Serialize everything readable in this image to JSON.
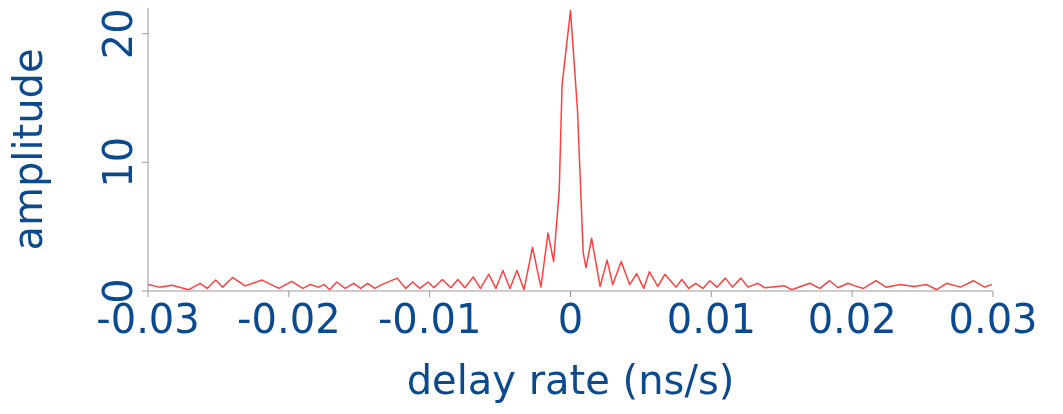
{
  "chart_data": {
    "type": "line",
    "xlabel": "delay rate (ns/s)",
    "ylabel": "amplitude",
    "xlim": [
      -0.03,
      0.03
    ],
    "xticks": [
      -0.03,
      -0.02,
      -0.01,
      0,
      0.01,
      0.02,
      0.03
    ],
    "ylim": [
      0,
      22
    ],
    "yticks": [
      0,
      10,
      20
    ],
    "grid": false,
    "marker": "none",
    "line_style": "solid",
    "series": [
      {
        "color": "#ff4040",
        "x": [
          -0.03,
          -0.0292,
          -0.0283,
          -0.0271,
          -0.0263,
          -0.0258,
          -0.0252,
          -0.0247,
          -0.024,
          -0.0231,
          -0.0219,
          -0.0207,
          -0.0198,
          -0.019,
          -0.0185,
          -0.0179,
          -0.0175,
          -0.0171,
          -0.0166,
          -0.016,
          -0.0154,
          -0.0149,
          -0.0144,
          -0.0139,
          -0.0134,
          -0.0123,
          -0.0117,
          -0.0112,
          -0.0107,
          -0.0101,
          -0.0097,
          -0.0091,
          -0.0085,
          -0.008,
          -0.0075,
          -0.0069,
          -0.0064,
          -0.0058,
          -0.0053,
          -0.0048,
          -0.0043,
          -0.0038,
          -0.0033,
          -0.0027,
          -0.0021,
          -0.0016,
          -0.0012,
          -0.0008,
          -0.0006,
          0,
          0.0005,
          0.0009,
          0.0011,
          0.0015,
          0.0021,
          0.0026,
          0.003,
          0.0036,
          0.0042,
          0.0047,
          0.0052,
          0.0056,
          0.0062,
          0.0067,
          0.0075,
          0.0079,
          0.0084,
          0.0089,
          0.0094,
          0.0099,
          0.0104,
          0.011,
          0.0115,
          0.0121,
          0.0126,
          0.0133,
          0.0138,
          0.0152,
          0.0157,
          0.017,
          0.0177,
          0.0184,
          0.019,
          0.0197,
          0.0202,
          0.0208,
          0.0217,
          0.0224,
          0.0234,
          0.0244,
          0.0253,
          0.026,
          0.0267,
          0.0277,
          0.0286,
          0.0294,
          0.0299
        ],
        "values": [
          0.5,
          0.3,
          0.45,
          0.1,
          0.6,
          0.2,
          0.85,
          0.3,
          1.05,
          0.4,
          0.85,
          0.2,
          0.75,
          0.2,
          0.5,
          0.3,
          0.5,
          0.1,
          0.7,
          0.2,
          0.6,
          0.2,
          0.6,
          0.2,
          0.5,
          1.0,
          0.2,
          0.7,
          0.2,
          0.7,
          0.25,
          0.9,
          0.25,
          0.9,
          0.25,
          1.1,
          0.2,
          1.3,
          0.2,
          1.6,
          0.2,
          1.6,
          0.1,
          3.4,
          0.3,
          4.5,
          2.3,
          7.8,
          16,
          21.8,
          14,
          3,
          1.8,
          4.1,
          0.35,
          2.4,
          0.5,
          2.3,
          0.5,
          1.35,
          0.2,
          1.5,
          0.35,
          1.3,
          0.3,
          0.9,
          0.2,
          0.6,
          0.2,
          0.8,
          0.3,
          1.0,
          0.3,
          1.0,
          0.3,
          0.6,
          0.25,
          0.4,
          0.1,
          0.6,
          0.2,
          0.8,
          0.25,
          0.6,
          0.4,
          0.2,
          0.8,
          0.3,
          0.5,
          0.35,
          0.5,
          0.1,
          0.6,
          0.3,
          0.8,
          0.3,
          0.5
        ]
      }
    ]
  }
}
